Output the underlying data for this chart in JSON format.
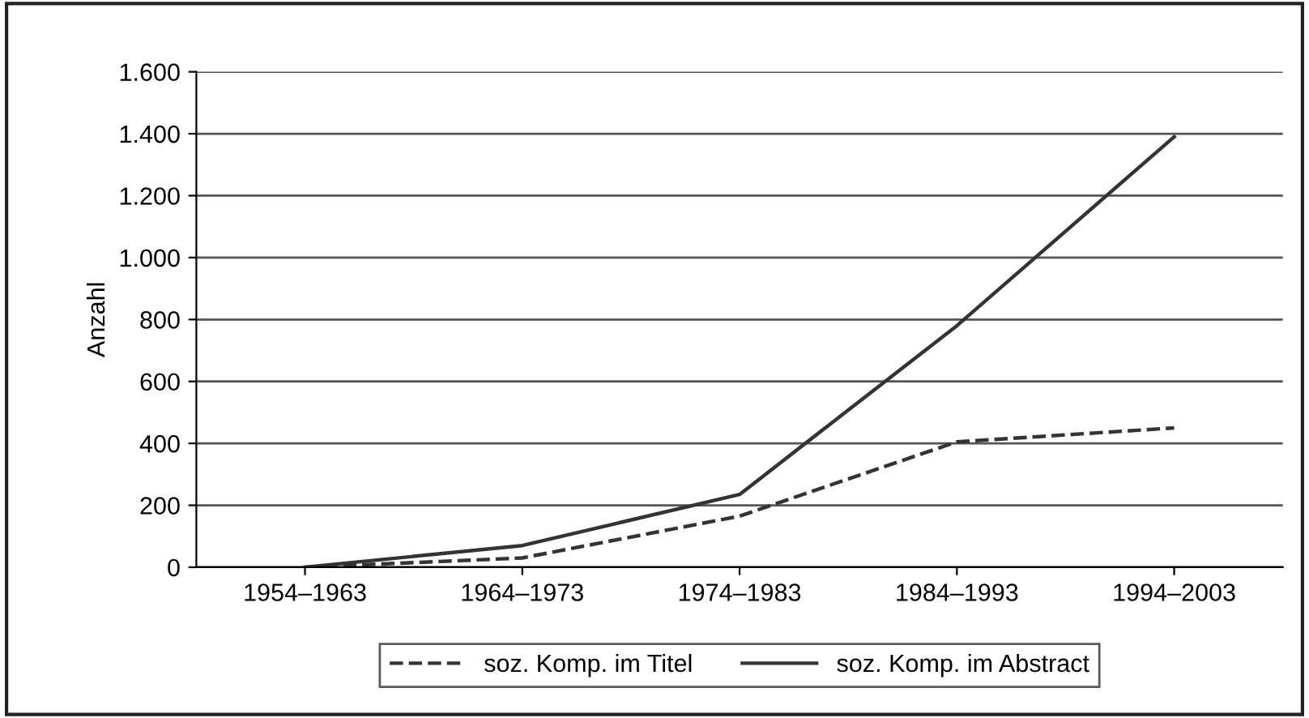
{
  "chart_data": {
    "type": "line",
    "ylabel": "Anzahl",
    "categories": [
      "1954–1963",
      "1964–1973",
      "1974–1983",
      "1984–1993",
      "1994–2003"
    ],
    "series": [
      {
        "name": "soz. Komp. im Titel",
        "color": "#333333",
        "line_style": "dashed",
        "values": [
          0,
          30,
          165,
          405,
          450
        ]
      },
      {
        "name": "soz. Komp. im Abstract",
        "color": "#333333",
        "line_style": "solid",
        "values": [
          0,
          70,
          235,
          780,
          1390
        ]
      }
    ],
    "ylim": [
      0,
      1600
    ],
    "yticks": [
      0,
      200,
      400,
      600,
      800,
      {
        "value": 1000,
        "label": "1.000"
      },
      {
        "value": 1200,
        "label": "1.200"
      },
      {
        "value": 1400,
        "label": "1.400"
      },
      {
        "value": 1600,
        "label": "1.600"
      }
    ],
    "grid": "y",
    "legend": "bottom",
    "marker": "none"
  }
}
